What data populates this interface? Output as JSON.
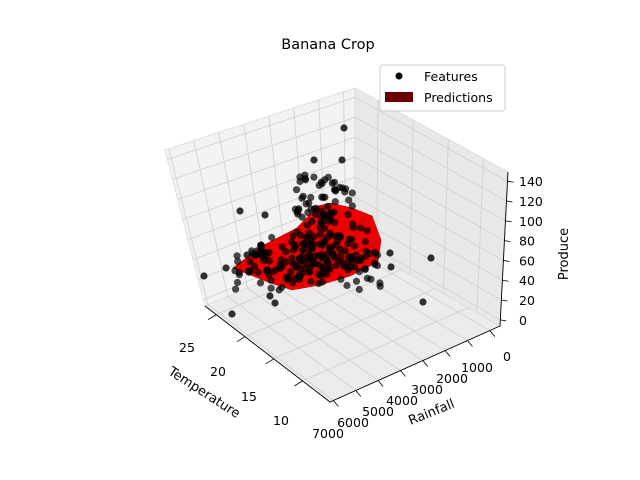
{
  "chart_data": {
    "type": "scatter",
    "title": "Banana Crop",
    "xlabel": "Temperature",
    "ylabel": "Rainfall",
    "zlabel": "Produce",
    "x_ticks": [
      "10",
      "15",
      "20",
      "25"
    ],
    "y_ticks": [
      "0",
      "1000",
      "2000",
      "3000",
      "4000",
      "5000",
      "6000",
      "7000"
    ],
    "z_ticks": [
      "0",
      "20",
      "40",
      "60",
      "80",
      "100",
      "120",
      "140"
    ],
    "legend_position": "top-right",
    "legend": [
      {
        "label": "Features",
        "marker": "circle",
        "color": "#000000"
      },
      {
        "label": "Predictions",
        "marker": "patch",
        "color": "#6b0000"
      }
    ],
    "series": [
      {
        "name": "Features",
        "kind": "scatter",
        "color": "#000000"
      },
      {
        "name": "Predictions",
        "kind": "surface",
        "color": "#ff0000"
      }
    ],
    "grid": true
  }
}
